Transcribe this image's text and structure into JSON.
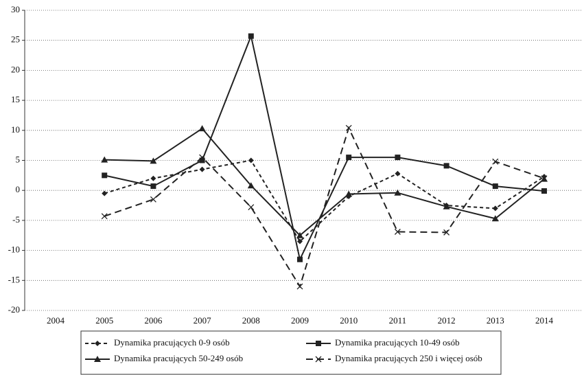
{
  "chart_data": {
    "type": "line",
    "categories": [
      "2004",
      "2005",
      "2006",
      "2007",
      "2008",
      "2009",
      "2010",
      "2011",
      "2012",
      "2013",
      "2014"
    ],
    "ylim": [
      -20,
      30
    ],
    "yticks": [
      -20,
      -15,
      -10,
      -5,
      0,
      5,
      10,
      15,
      20,
      25,
      30
    ],
    "grid": true,
    "legend": "bottom",
    "series": [
      {
        "name": "Dynamika pracujących 0-9 osób",
        "color": "#222222",
        "marker": "diamond",
        "dash": "5,4",
        "values": [
          null,
          -0.5,
          2.0,
          3.5,
          5.0,
          -8.5,
          -1.0,
          2.8,
          -2.5,
          -3.0,
          2.3
        ]
      },
      {
        "name": "Dynamika pracujących 10-49 osób",
        "color": "#222222",
        "marker": "square",
        "dash": "none",
        "values": [
          null,
          2.5,
          0.7,
          5.0,
          25.7,
          -11.5,
          5.5,
          5.5,
          4.1,
          0.7,
          -0.1
        ]
      },
      {
        "name": "Dynamika pracujących 50-249 osób",
        "color": "#222222",
        "marker": "triangle",
        "dash": "none",
        "values": [
          null,
          5.1,
          4.9,
          10.3,
          0.8,
          -7.5,
          -0.6,
          -0.4,
          -2.7,
          -4.7,
          1.9
        ]
      },
      {
        "name": "Dynamika pracujących 250 i więcej osób",
        "color": "#222222",
        "marker": "cross",
        "dash": "10,6",
        "values": [
          null,
          -4.3,
          -1.5,
          5.5,
          -2.8,
          -16.0,
          10.4,
          -6.9,
          -7.0,
          4.8,
          2.0
        ]
      }
    ]
  }
}
